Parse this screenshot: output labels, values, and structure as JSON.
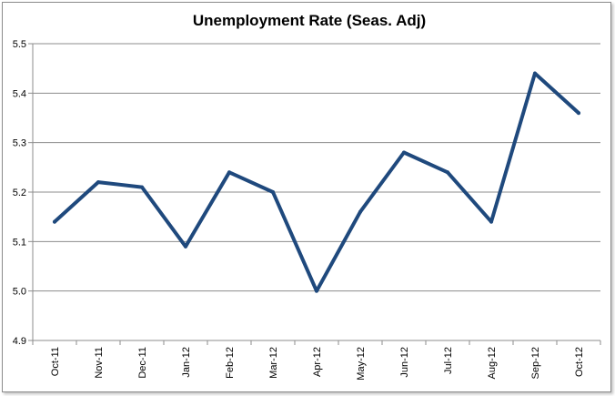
{
  "chart_data": {
    "type": "line",
    "title": "Unemployment Rate (Seas. Adj)",
    "xlabel": "",
    "ylabel": "",
    "categories": [
      "Oct-11",
      "Nov-11",
      "Dec-11",
      "Jan-12",
      "Feb-12",
      "Mar-12",
      "Apr-12",
      "May-12",
      "Jun-12",
      "Jul-12",
      "Aug-12",
      "Sep-12",
      "Oct-12"
    ],
    "series": [
      {
        "values": [
          5.14,
          5.22,
          5.21,
          5.09,
          5.24,
          5.2,
          5.0,
          5.16,
          5.28,
          5.24,
          5.14,
          5.44,
          5.36
        ]
      }
    ],
    "ylim": [
      4.9,
      5.5
    ],
    "yticks": [
      "4.9",
      "5.0",
      "5.1",
      "5.2",
      "5.3",
      "5.4",
      "5.5"
    ],
    "grid": "horizontal",
    "legend": "none",
    "line_color": "#1f497d"
  }
}
